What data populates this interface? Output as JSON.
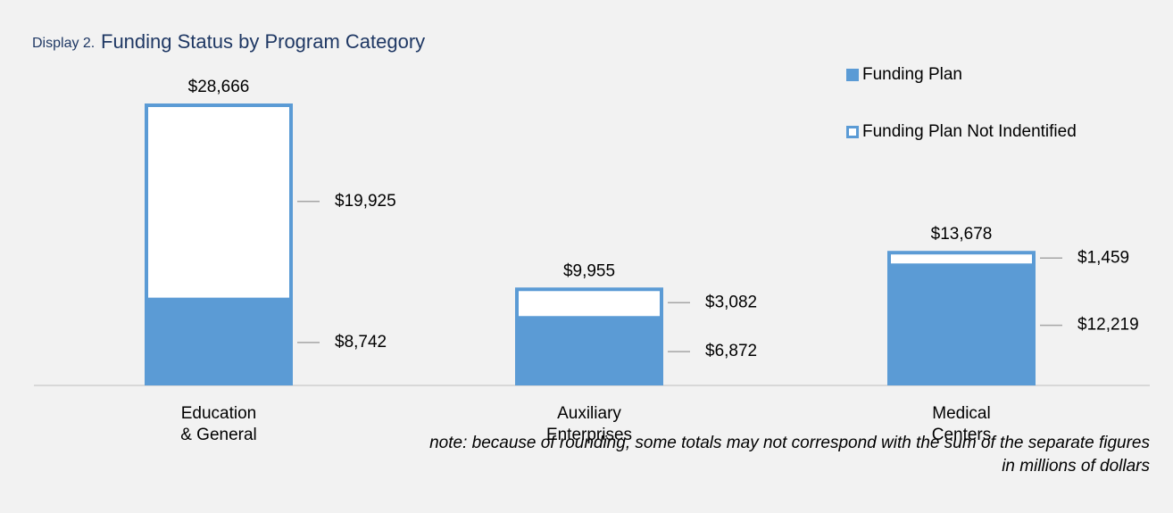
{
  "chart_data": {
    "type": "stacked_bar",
    "label": "Display 2.",
    "title": "Funding Status by Program Category",
    "categories": [
      "Education\n& General",
      "Auxiliary\nEnterprises",
      "Medical\nCenters"
    ],
    "series": [
      {
        "name": "Funding Plan",
        "color": "#5b9bd5",
        "fill": "#5b9bd5",
        "values": [
          8742,
          6872,
          12219
        ],
        "value_labels": [
          "$8,742",
          "$6,872",
          "$12,219"
        ]
      },
      {
        "name": "Funding Plan Not Indentified",
        "color": "#5b9bd5",
        "fill": "#ffffff",
        "values": [
          19925,
          3082,
          1459
        ],
        "value_labels": [
          "$19,925",
          "$3,082",
          "$1,459"
        ]
      }
    ],
    "totals": {
      "values": [
        28666,
        9955,
        13678
      ],
      "value_labels": [
        "$28,666",
        "$9,955",
        "$13,678"
      ]
    },
    "legend": "top-right",
    "notes": [
      "note: because of rounding, some totals may not correspond with the sum of the separate figures",
      "in millions of dollars"
    ]
  }
}
